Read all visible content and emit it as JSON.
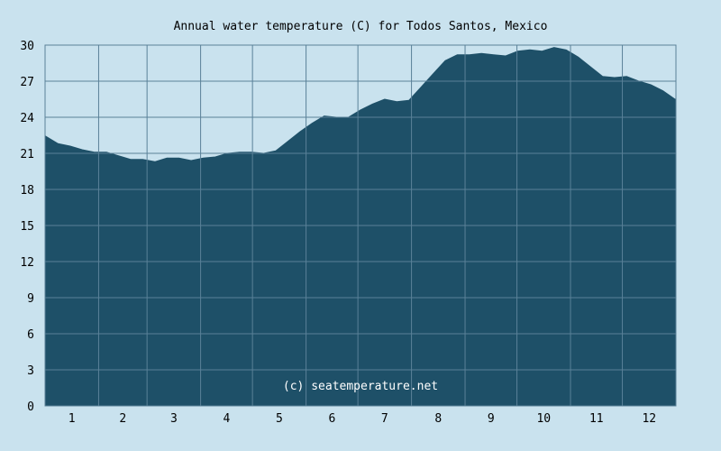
{
  "chart_data": {
    "type": "area",
    "title": "Annual water temperature (C) for Todos Santos, Mexico",
    "watermark": "(c) seatemperature.net",
    "xlabel": "",
    "ylabel": "",
    "ylim": [
      0,
      30
    ],
    "y_ticks": [
      "0",
      "3",
      "6",
      "9",
      "12",
      "15",
      "18",
      "21",
      "24",
      "27",
      "30"
    ],
    "x_ticks": [
      "1",
      "2",
      "3",
      "4",
      "5",
      "6",
      "7",
      "8",
      "9",
      "10",
      "11",
      "12"
    ],
    "grid": true,
    "colors": {
      "fill": "#1e5068",
      "grid": "#5a8198",
      "background": "#c9e2ee"
    },
    "series": [
      {
        "x": [
          1,
          8,
          15,
          22,
          29,
          36,
          43,
          50,
          57,
          64,
          71,
          78,
          85,
          92,
          99,
          106,
          113,
          120,
          127,
          134,
          141,
          148,
          155,
          162,
          169,
          176,
          183,
          190,
          197,
          204,
          211,
          218,
          225,
          232,
          239,
          246,
          253,
          260,
          267,
          274,
          281,
          288,
          295,
          302,
          309,
          316,
          323,
          330,
          337,
          344,
          351,
          358,
          365
        ],
        "values": [
          22.4,
          21.8,
          21.6,
          21.3,
          21.1,
          21.1,
          20.8,
          20.5,
          20.5,
          20.3,
          20.6,
          20.6,
          20.4,
          20.6,
          20.7,
          21.0,
          21.1,
          21.1,
          21.0,
          21.2,
          22.0,
          22.8,
          23.5,
          24.1,
          24.0,
          24.0,
          24.6,
          25.1,
          25.5,
          25.3,
          25.4,
          26.5,
          27.6,
          28.7,
          29.2,
          29.2,
          29.3,
          29.2,
          29.1,
          29.5,
          29.6,
          29.5,
          29.8,
          29.6,
          29.0,
          28.2,
          27.4,
          27.3,
          27.4,
          27.0,
          26.7,
          26.2,
          25.5
        ]
      }
    ]
  }
}
